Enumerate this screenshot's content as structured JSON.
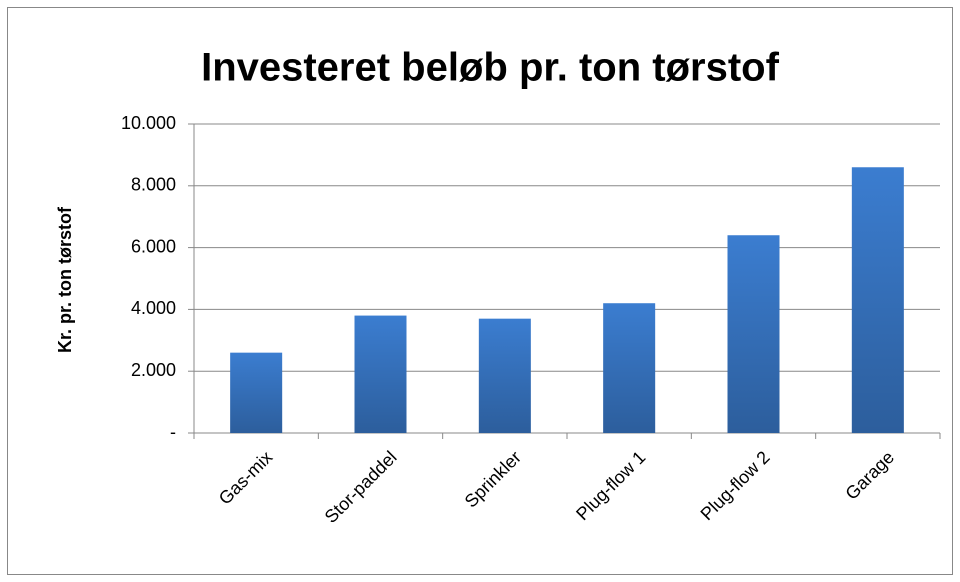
{
  "chart_data": {
    "type": "bar",
    "title": "Investeret beløb pr. ton tørstof",
    "y_label": "Kr. pr. ton tørstof",
    "categories": [
      "Gas-mix",
      "Stor-paddel",
      "Sprinkler",
      "Plug-flow 1",
      "Plug-flow 2",
      "Garage"
    ],
    "values": [
      2600,
      3800,
      3700,
      4200,
      6400,
      8600
    ],
    "color": "#3b7dd0",
    "ylim": [
      0,
      10000
    ],
    "yticks": [
      {
        "value": 0,
        "label": "-"
      },
      {
        "value": 2000,
        "label": "2.000"
      },
      {
        "value": 4000,
        "label": "4.000"
      },
      {
        "value": 6000,
        "label": "6.000"
      },
      {
        "value": 8000,
        "label": "8.000"
      },
      {
        "value": 10000,
        "label": "10.000"
      }
    ],
    "grid": true
  }
}
